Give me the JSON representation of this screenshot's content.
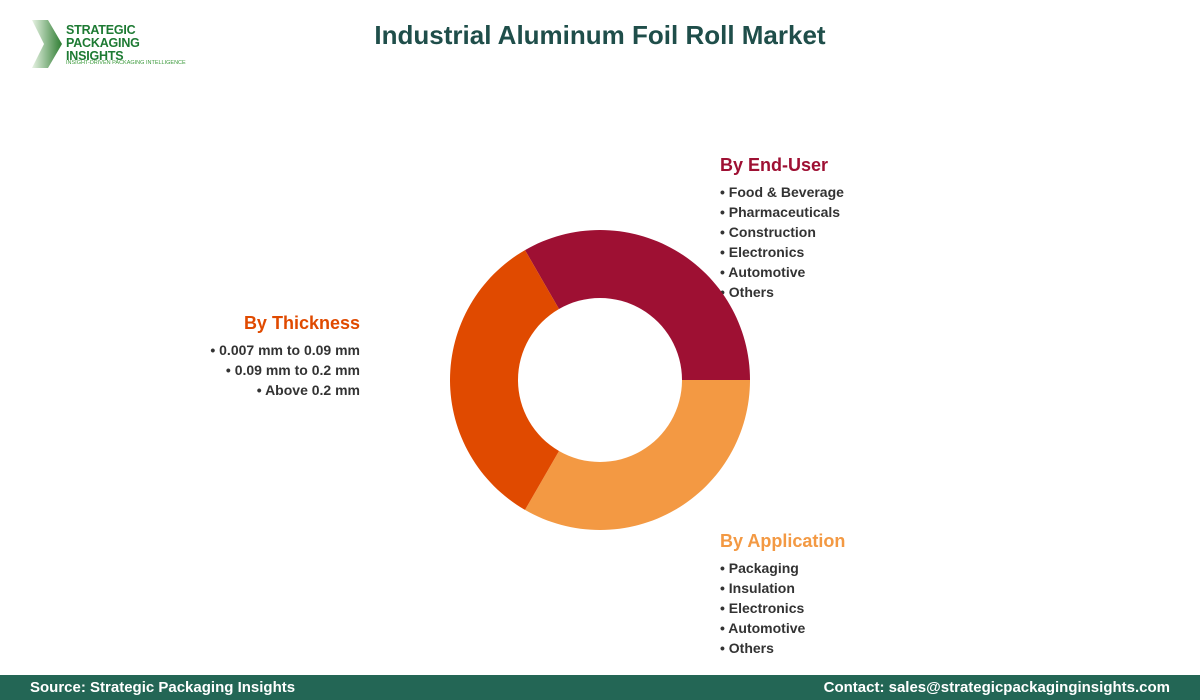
{
  "logo": {
    "line1": "STRATEGIC",
    "line2": "PACKAGING INSIGHTS",
    "tagline": "INSIGHT-DRIVEN PACKAGING INTELLIGENCE"
  },
  "title": "Industrial Aluminum Foil Roll Market",
  "segments": {
    "thickness": {
      "title": "By Thickness",
      "items": [
        "0.007 mm to 0.09 mm",
        "0.09 mm to 0.2 mm",
        "Above 0.2 mm"
      ]
    },
    "end_user": {
      "title": "By End-User",
      "items": [
        "Food & Beverage",
        "Pharmaceuticals",
        "Construction",
        "Electronics",
        "Automotive",
        "Others"
      ]
    },
    "application": {
      "title": "By Application",
      "items": [
        "Packaging",
        "Insulation",
        "Electronics",
        "Automotive",
        "Others"
      ]
    }
  },
  "chart_data": {
    "type": "pie",
    "donut": true,
    "categories": [
      "By End-User",
      "By Application",
      "By Thickness"
    ],
    "values": [
      1,
      1,
      1
    ],
    "colors": [
      "#9e1033",
      "#f39943",
      "#e04a00"
    ]
  },
  "footer": {
    "source": "Source: Strategic Packaging Insights",
    "contact": "Contact: sales@strategicpackaginginsights.com"
  }
}
